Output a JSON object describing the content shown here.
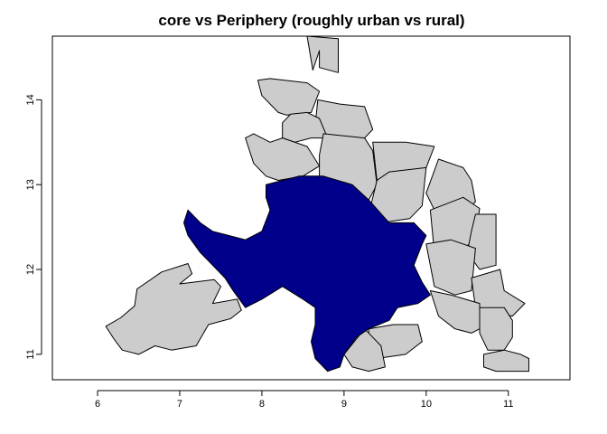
{
  "chart_data": {
    "type": "choropleth-map",
    "title": "core vs Periphery (roughly urban vs rural)",
    "xlabel": "",
    "ylabel": "",
    "xlim": [
      5.45,
      11.75
    ],
    "ylim": [
      10.7,
      14.75
    ],
    "x_ticks": [
      6,
      7,
      8,
      9,
      10,
      11
    ],
    "y_ticks": [
      11,
      12,
      13,
      14
    ],
    "grid": false,
    "legend": "none",
    "categories": [
      "core",
      "periphery"
    ],
    "colors": {
      "core": "#00008b",
      "periphery": "#cccccc",
      "border": "#000000"
    },
    "regions": [
      {
        "category": "periphery",
        "path": [
          [
            6.1,
            11.33
          ],
          [
            6.28,
            11.43
          ],
          [
            6.45,
            11.57
          ],
          [
            6.48,
            11.77
          ],
          [
            6.78,
            11.97
          ],
          [
            7.1,
            12.07
          ],
          [
            7.15,
            11.95
          ],
          [
            7.0,
            11.83
          ],
          [
            7.42,
            11.88
          ],
          [
            7.5,
            11.8
          ],
          [
            7.4,
            11.6
          ],
          [
            7.7,
            11.65
          ],
          [
            7.75,
            11.52
          ],
          [
            7.62,
            11.42
          ],
          [
            7.35,
            11.35
          ],
          [
            7.2,
            11.1
          ],
          [
            6.9,
            11.05
          ],
          [
            6.7,
            11.1
          ],
          [
            6.5,
            11.0
          ],
          [
            6.3,
            11.05
          ],
          [
            6.2,
            11.18
          ]
        ]
      },
      {
        "category": "periphery",
        "path": [
          [
            8.55,
            14.75
          ],
          [
            8.93,
            14.72
          ],
          [
            8.93,
            14.32
          ],
          [
            8.7,
            14.38
          ],
          [
            8.7,
            14.58
          ],
          [
            8.62,
            14.35
          ]
        ]
      },
      {
        "category": "periphery",
        "path": [
          [
            7.95,
            14.23
          ],
          [
            8.1,
            14.25
          ],
          [
            8.55,
            14.2
          ],
          [
            8.7,
            14.1
          ],
          [
            8.6,
            13.85
          ],
          [
            8.3,
            13.82
          ],
          [
            8.2,
            13.85
          ],
          [
            8.0,
            14.05
          ]
        ]
      },
      {
        "category": "periphery",
        "path": [
          [
            8.68,
            14.0
          ],
          [
            8.95,
            13.95
          ],
          [
            9.25,
            13.92
          ],
          [
            9.35,
            13.65
          ],
          [
            9.25,
            13.55
          ],
          [
            9.0,
            13.52
          ],
          [
            8.8,
            13.55
          ],
          [
            8.65,
            13.7
          ]
        ]
      },
      {
        "category": "periphery",
        "path": [
          [
            8.25,
            13.73
          ],
          [
            8.35,
            13.83
          ],
          [
            8.55,
            13.85
          ],
          [
            8.7,
            13.78
          ],
          [
            8.8,
            13.55
          ],
          [
            8.6,
            13.55
          ],
          [
            8.4,
            13.5
          ],
          [
            8.25,
            13.55
          ]
        ]
      },
      {
        "category": "periphery",
        "path": [
          [
            7.8,
            13.55
          ],
          [
            7.9,
            13.6
          ],
          [
            8.1,
            13.5
          ],
          [
            8.25,
            13.55
          ],
          [
            8.55,
            13.45
          ],
          [
            8.7,
            13.22
          ],
          [
            8.5,
            13.1
          ],
          [
            8.2,
            13.05
          ],
          [
            8.05,
            13.1
          ],
          [
            7.9,
            13.25
          ]
        ]
      },
      {
        "category": "periphery",
        "path": [
          [
            8.75,
            13.6
          ],
          [
            9.25,
            13.55
          ],
          [
            9.35,
            13.4
          ],
          [
            9.4,
            13.0
          ],
          [
            9.3,
            12.82
          ],
          [
            8.8,
            12.85
          ],
          [
            8.7,
            13.05
          ],
          [
            8.7,
            13.35
          ]
        ]
      },
      {
        "category": "periphery",
        "path": [
          [
            9.35,
            13.5
          ],
          [
            9.75,
            13.5
          ],
          [
            10.1,
            13.45
          ],
          [
            10.0,
            13.2
          ],
          [
            9.8,
            13.05
          ],
          [
            9.55,
            13.15
          ],
          [
            9.4,
            13.05
          ]
        ]
      },
      {
        "category": "periphery",
        "path": [
          [
            9.4,
            13.05
          ],
          [
            9.55,
            13.15
          ],
          [
            10.0,
            13.2
          ],
          [
            9.95,
            12.75
          ],
          [
            9.8,
            12.6
          ],
          [
            9.45,
            12.55
          ],
          [
            9.3,
            12.65
          ]
        ]
      },
      {
        "category": "periphery",
        "path": [
          [
            10.15,
            13.3
          ],
          [
            10.45,
            13.2
          ],
          [
            10.55,
            13.05
          ],
          [
            10.6,
            12.8
          ],
          [
            10.45,
            12.65
          ],
          [
            10.1,
            12.7
          ],
          [
            10.0,
            12.9
          ]
        ]
      },
      {
        "category": "periphery",
        "path": [
          [
            10.05,
            12.7
          ],
          [
            10.45,
            12.85
          ],
          [
            10.65,
            12.72
          ],
          [
            10.6,
            12.4
          ],
          [
            10.4,
            12.15
          ],
          [
            10.1,
            12.2
          ]
        ]
      },
      {
        "category": "periphery",
        "path": [
          [
            10.6,
            12.65
          ],
          [
            10.85,
            12.65
          ],
          [
            10.85,
            12.05
          ],
          [
            10.65,
            12.0
          ],
          [
            10.5,
            12.2
          ],
          [
            10.55,
            12.45
          ]
        ]
      },
      {
        "category": "periphery",
        "path": [
          [
            10.0,
            12.3
          ],
          [
            10.3,
            12.35
          ],
          [
            10.6,
            12.25
          ],
          [
            10.55,
            11.75
          ],
          [
            10.35,
            11.7
          ],
          [
            10.1,
            11.8
          ]
        ]
      },
      {
        "category": "periphery",
        "path": [
          [
            10.55,
            11.9
          ],
          [
            10.9,
            12.0
          ],
          [
            10.95,
            11.75
          ],
          [
            11.2,
            11.6
          ],
          [
            11.05,
            11.45
          ],
          [
            10.8,
            11.5
          ],
          [
            10.6,
            11.55
          ]
        ]
      },
      {
        "category": "periphery",
        "path": [
          [
            10.05,
            11.75
          ],
          [
            10.3,
            11.7
          ],
          [
            10.65,
            11.6
          ],
          [
            10.65,
            11.3
          ],
          [
            10.55,
            11.25
          ],
          [
            10.35,
            11.3
          ],
          [
            10.15,
            11.45
          ]
        ]
      },
      {
        "category": "periphery",
        "path": [
          [
            10.65,
            11.55
          ],
          [
            10.95,
            11.55
          ],
          [
            11.05,
            11.4
          ],
          [
            11.05,
            11.2
          ],
          [
            10.95,
            11.05
          ],
          [
            10.75,
            11.05
          ],
          [
            10.65,
            11.25
          ]
        ]
      },
      {
        "category": "periphery",
        "path": [
          [
            10.7,
            11.0
          ],
          [
            10.95,
            11.05
          ],
          [
            11.15,
            11.0
          ],
          [
            11.25,
            10.95
          ],
          [
            11.25,
            10.8
          ],
          [
            10.85,
            10.8
          ],
          [
            10.7,
            10.85
          ]
        ]
      },
      {
        "category": "periphery",
        "path": [
          [
            9.3,
            11.3
          ],
          [
            9.6,
            11.35
          ],
          [
            9.9,
            11.35
          ],
          [
            9.95,
            11.15
          ],
          [
            9.75,
            11.0
          ],
          [
            9.4,
            10.95
          ],
          [
            9.3,
            11.1
          ]
        ]
      },
      {
        "category": "periphery",
        "path": [
          [
            9.25,
            11.3
          ],
          [
            9.45,
            11.1
          ],
          [
            9.5,
            10.85
          ],
          [
            9.3,
            10.8
          ],
          [
            9.1,
            10.85
          ],
          [
            9.0,
            11.0
          ]
        ]
      },
      {
        "category": "core",
        "path": [
          [
            8.05,
            13.0
          ],
          [
            8.45,
            13.1
          ],
          [
            8.75,
            13.1
          ],
          [
            9.1,
            13.0
          ],
          [
            9.3,
            12.82
          ],
          [
            9.55,
            12.55
          ],
          [
            9.85,
            12.55
          ],
          [
            10.0,
            12.4
          ],
          [
            9.95,
            12.3
          ],
          [
            9.85,
            12.05
          ],
          [
            9.95,
            11.85
          ],
          [
            10.05,
            11.7
          ],
          [
            9.9,
            11.6
          ],
          [
            9.65,
            11.55
          ],
          [
            9.55,
            11.4
          ],
          [
            9.3,
            11.3
          ],
          [
            9.15,
            11.2
          ],
          [
            9.0,
            11.0
          ],
          [
            8.95,
            10.85
          ],
          [
            8.8,
            10.8
          ],
          [
            8.65,
            10.95
          ],
          [
            8.6,
            11.15
          ],
          [
            8.65,
            11.35
          ],
          [
            8.65,
            11.55
          ],
          [
            8.5,
            11.65
          ],
          [
            8.25,
            11.8
          ],
          [
            8.0,
            11.65
          ],
          [
            7.8,
            11.55
          ],
          [
            7.65,
            11.75
          ],
          [
            7.55,
            11.9
          ],
          [
            7.4,
            12.05
          ],
          [
            7.25,
            12.2
          ],
          [
            7.1,
            12.4
          ],
          [
            7.05,
            12.55
          ],
          [
            7.1,
            12.7
          ],
          [
            7.25,
            12.55
          ],
          [
            7.4,
            12.45
          ],
          [
            7.6,
            12.4
          ],
          [
            7.8,
            12.35
          ],
          [
            8.0,
            12.45
          ],
          [
            8.1,
            12.7
          ],
          [
            8.05,
            12.85
          ]
        ]
      }
    ]
  }
}
